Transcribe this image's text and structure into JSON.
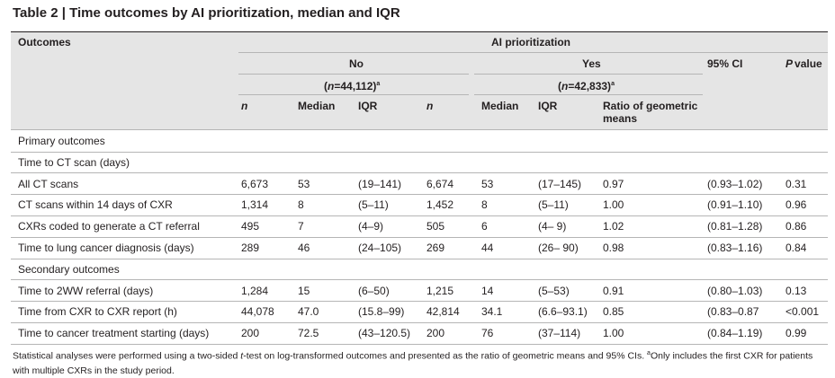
{
  "title": {
    "label": "Table 2 |",
    "text": "Time outcomes by AI prioritization, median and IQR"
  },
  "header": {
    "outcomes": "Outcomes",
    "group": "AI prioritization",
    "no": "No",
    "yes": "Yes",
    "ci": "95% CI",
    "p": {
      "italic": "P",
      "rest": "value"
    },
    "no_n": {
      "open": "(",
      "italic": "n",
      "rest": "=44,112)",
      "sup": "a"
    },
    "yes_n": {
      "open": "(",
      "italic": "n",
      "rest": "=42,833)",
      "sup": "a"
    },
    "columns": [
      "n",
      "Median",
      "IQR",
      "n",
      "Median",
      "IQR",
      "Ratio of geometric means"
    ]
  },
  "rows": [
    {
      "section": "Primary outcomes"
    },
    {
      "section": "Time to CT scan (days)"
    },
    {
      "cells": [
        "All CT scans",
        "6,673",
        "53",
        "(19–141)",
        "6,674",
        "53",
        "(17–145)",
        "0.97",
        "(0.93–1.02)",
        "0.31"
      ]
    },
    {
      "cells": [
        "CT scans within 14 days of CXR",
        "1,314",
        "8",
        "(5–11)",
        "1,452",
        "8",
        "(5–11)",
        "1.00",
        "(0.91–1.10)",
        "0.96"
      ]
    },
    {
      "cells": [
        "CXRs coded to generate a CT referral",
        "495",
        "7",
        "(4–9)",
        "505",
        "6",
        "(4– 9)",
        "1.02",
        "(0.81–1.28)",
        "0.86"
      ]
    },
    {
      "cells": [
        "Time to lung cancer diagnosis (days)",
        "289",
        "46",
        "(24–105)",
        "269",
        "44",
        "(26– 90)",
        "0.98",
        "(0.83–1.16)",
        "0.84"
      ]
    },
    {
      "section": "Secondary outcomes"
    },
    {
      "cells": [
        "Time to 2WW referral (days)",
        "1,284",
        "15",
        "(6–50)",
        "1,215",
        "14",
        "(5–53)",
        "0.91",
        "(0.80–1.03)",
        "0.13"
      ]
    },
    {
      "cells": [
        "Time from CXR to CXR report (h)",
        "44,078",
        "47.0",
        "(15.8–99)",
        "42,814",
        "34.1",
        "(6.6–93.1)",
        "0.85",
        "(0.83–0.87",
        "<0.001"
      ]
    },
    {
      "cells": [
        "Time to cancer treatment starting (days)",
        "200",
        "72.5",
        "(43–120.5)",
        "200",
        "76",
        "(37–114)",
        "1.00",
        "(0.84–1.19)",
        "0.99"
      ]
    }
  ],
  "footnote": {
    "a": "Statistical analyses were performed using a two-sided ",
    "italic": "t",
    "b": "-test on log-transformed outcomes and presented as the ratio of geometric means and 95% CIs. ",
    "sup": "a",
    "c": "Only includes the first CXR for patients with multiple CXRs in the study period."
  }
}
